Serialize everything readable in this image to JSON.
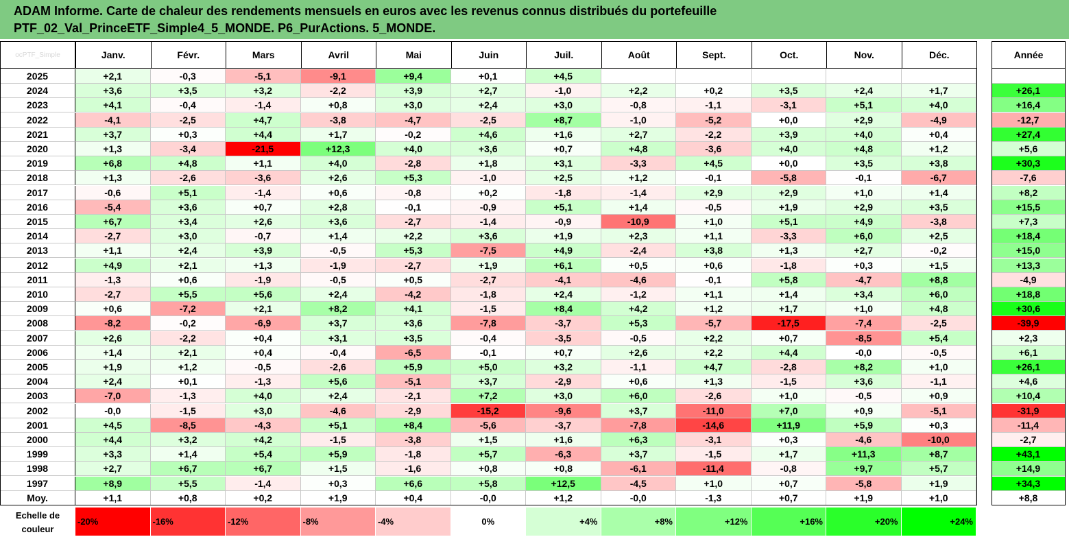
{
  "title": {
    "line1": "ADAM Informe. Carte de chaleur des rendements mensuels en euros avec les revenus connus distribués du portefeuille",
    "line2": "PTF_02_Val_PrinceETF_Simple4_5_MONDE. P6_PurActions. 5_MONDE."
  },
  "corner_label": "ocPTF_Simple",
  "chart_data": {
    "type": "heatmap",
    "columns": [
      "Janv.",
      "Févr.",
      "Mars",
      "Avril",
      "Mai",
      "Juin",
      "Juil.",
      "Août",
      "Sept.",
      "Oct.",
      "Nov.",
      "Déc."
    ],
    "year_column": "Année",
    "rows": [
      {
        "year": "2025",
        "months": [
          "+2,1",
          "-0,3",
          "-5,1",
          "-9,1",
          "+9,4",
          "+0,1",
          "+4,5",
          "",
          "",
          "",
          "",
          ""
        ],
        "annual": ""
      },
      {
        "year": "2024",
        "months": [
          "+3,6",
          "+3,5",
          "+3,2",
          "-2,2",
          "+3,9",
          "+2,7",
          "-1,0",
          "+2,2",
          "+0,2",
          "+3,5",
          "+2,4",
          "+1,7"
        ],
        "annual": "+26,1"
      },
      {
        "year": "2023",
        "months": [
          "+4,1",
          "-0,4",
          "-1,4",
          "+0,8",
          "+3,0",
          "+2,4",
          "+3,0",
          "-0,8",
          "-1,1",
          "-3,1",
          "+5,1",
          "+4,0"
        ],
        "annual": "+16,4"
      },
      {
        "year": "2022",
        "months": [
          "-4,1",
          "-2,5",
          "+4,7",
          "-3,8",
          "-4,7",
          "-2,5",
          "+8,7",
          "-1,0",
          "-5,2",
          "+0,0",
          "+2,9",
          "-4,9"
        ],
        "annual": "-12,7"
      },
      {
        "year": "2021",
        "months": [
          "+3,7",
          "+0,3",
          "+4,4",
          "+1,7",
          "-0,2",
          "+4,6",
          "+1,6",
          "+2,7",
          "-2,2",
          "+3,9",
          "+4,0",
          "+0,4"
        ],
        "annual": "+27,4"
      },
      {
        "year": "2020",
        "months": [
          "+1,3",
          "-3,4",
          "-21,5",
          "+12,3",
          "+4,0",
          "+3,6",
          "+0,7",
          "+4,8",
          "-3,6",
          "+4,0",
          "+4,8",
          "+1,2"
        ],
        "annual": "+5,6"
      },
      {
        "year": "2019",
        "months": [
          "+6,8",
          "+4,8",
          "+1,1",
          "+4,0",
          "-2,8",
          "+1,8",
          "+3,1",
          "-3,3",
          "+4,5",
          "+0,0",
          "+3,5",
          "+3,8"
        ],
        "annual": "+30,3"
      },
      {
        "year": "2018",
        "months": [
          "+1,3",
          "-2,6",
          "-3,6",
          "+2,6",
          "+5,3",
          "-1,0",
          "+2,5",
          "+1,2",
          "-0,1",
          "-5,8",
          "-0,1",
          "-6,7"
        ],
        "annual": "-7,6"
      },
      {
        "year": "2017",
        "months": [
          "-0,6",
          "+5,1",
          "-1,4",
          "+0,6",
          "-0,8",
          "+0,2",
          "-1,8",
          "-1,4",
          "+2,9",
          "+2,9",
          "+1,0",
          "+1,4"
        ],
        "annual": "+8,2"
      },
      {
        "year": "2016",
        "months": [
          "-5,4",
          "+3,6",
          "+0,7",
          "+2,8",
          "-0,1",
          "-0,9",
          "+5,1",
          "+1,4",
          "-0,5",
          "+1,9",
          "+2,9",
          "+3,5"
        ],
        "annual": "+15,5"
      },
      {
        "year": "2015",
        "months": [
          "+6,7",
          "+3,4",
          "+2,6",
          "+3,6",
          "-2,7",
          "-1,4",
          "-0,9",
          "-10,9",
          "+1,0",
          "+5,1",
          "+4,9",
          "-3,8"
        ],
        "annual": "+7,3"
      },
      {
        "year": "2014",
        "months": [
          "-2,7",
          "+3,0",
          "-0,7",
          "+1,4",
          "+2,2",
          "+3,6",
          "+1,9",
          "+2,3",
          "+1,1",
          "-3,3",
          "+6,0",
          "+2,5"
        ],
        "annual": "+18,4"
      },
      {
        "year": "2013",
        "months": [
          "+1,1",
          "+2,4",
          "+3,9",
          "-0,5",
          "+5,3",
          "-7,5",
          "+4,9",
          "-2,4",
          "+3,8",
          "+1,3",
          "+2,7",
          "-0,2"
        ],
        "annual": "+15,0"
      },
      {
        "year": "2012",
        "months": [
          "+4,9",
          "+2,1",
          "+1,3",
          "-1,9",
          "-2,7",
          "+1,9",
          "+6,1",
          "+0,5",
          "+0,6",
          "-1,8",
          "+0,3",
          "+1,5"
        ],
        "annual": "+13,3"
      },
      {
        "year": "2011",
        "months": [
          "-1,3",
          "+0,6",
          "-1,9",
          "-0,5",
          "+0,5",
          "-2,7",
          "-4,1",
          "-4,6",
          "-0,1",
          "+5,8",
          "-4,7",
          "+8,8"
        ],
        "annual": "-4,9"
      },
      {
        "year": "2010",
        "months": [
          "-2,7",
          "+5,5",
          "+5,6",
          "+2,4",
          "-4,2",
          "-1,8",
          "+2,4",
          "-1,2",
          "+1,1",
          "+1,4",
          "+3,4",
          "+6,0"
        ],
        "annual": "+18,8"
      },
      {
        "year": "2009",
        "months": [
          "+0,6",
          "-7,2",
          "+2,1",
          "+8,2",
          "+4,1",
          "-1,5",
          "+8,4",
          "+4,2",
          "+1,2",
          "+1,7",
          "+1,0",
          "+4,8"
        ],
        "annual": "+30,6"
      },
      {
        "year": "2008",
        "months": [
          "-8,2",
          "-0,2",
          "-6,9",
          "+3,7",
          "+3,6",
          "-7,8",
          "-3,7",
          "+5,3",
          "-5,7",
          "-17,5",
          "-7,4",
          "-2,5"
        ],
        "annual": "-39,9"
      },
      {
        "year": "2007",
        "months": [
          "+2,6",
          "-2,2",
          "+0,4",
          "+3,1",
          "+3,5",
          "-0,4",
          "-3,5",
          "-0,5",
          "+2,2",
          "+0,7",
          "-8,5",
          "+5,4"
        ],
        "annual": "+2,3"
      },
      {
        "year": "2006",
        "months": [
          "+1,4",
          "+2,1",
          "+0,4",
          "-0,4",
          "-6,5",
          "-0,1",
          "+0,7",
          "+2,6",
          "+2,2",
          "+4,4",
          "-0,0",
          "-0,5"
        ],
        "annual": "+6,1"
      },
      {
        "year": "2005",
        "months": [
          "+1,9",
          "+1,2",
          "-0,5",
          "-2,6",
          "+5,9",
          "+5,0",
          "+3,2",
          "-1,1",
          "+4,7",
          "-2,8",
          "+8,2",
          "+1,0"
        ],
        "annual": "+26,1"
      },
      {
        "year": "2004",
        "months": [
          "+2,4",
          "+0,1",
          "-1,3",
          "+5,6",
          "-5,1",
          "+3,7",
          "-2,9",
          "+0,6",
          "+1,3",
          "-1,5",
          "+3,6",
          "-1,1"
        ],
        "annual": "+4,6"
      },
      {
        "year": "2003",
        "months": [
          "-7,0",
          "-1,3",
          "+4,0",
          "+2,4",
          "-2,1",
          "+7,2",
          "+3,0",
          "+6,0",
          "-2,6",
          "+1,0",
          "-0,5",
          "+0,9"
        ],
        "annual": "+10,4"
      },
      {
        "year": "2002",
        "months": [
          "-0,0",
          "-1,5",
          "+3,0",
          "-4,6",
          "-2,9",
          "-15,2",
          "-9,6",
          "+3,7",
          "-11,0",
          "+7,0",
          "+0,9",
          "-5,1"
        ],
        "annual": "-31,9"
      },
      {
        "year": "2001",
        "months": [
          "+4,5",
          "-8,5",
          "-4,3",
          "+5,1",
          "+8,4",
          "-5,6",
          "-3,7",
          "-7,8",
          "-14,6",
          "+11,9",
          "+5,9",
          "+0,3"
        ],
        "annual": "-11,4"
      },
      {
        "year": "2000",
        "months": [
          "+4,4",
          "+3,2",
          "+4,2",
          "-1,5",
          "-3,8",
          "+1,5",
          "+1,6",
          "+6,3",
          "-3,1",
          "+0,3",
          "-4,6",
          "-10,0"
        ],
        "annual": "-2,7"
      },
      {
        "year": "1999",
        "months": [
          "+3,3",
          "+1,4",
          "+5,4",
          "+5,9",
          "-1,8",
          "+5,7",
          "-6,3",
          "+3,7",
          "-1,5",
          "+1,7",
          "+11,3",
          "+8,7"
        ],
        "annual": "+43,1"
      },
      {
        "year": "1998",
        "months": [
          "+2,7",
          "+6,7",
          "+6,7",
          "+1,5",
          "-1,6",
          "+0,8",
          "+0,8",
          "-6,1",
          "-11,4",
          "-0,8",
          "+9,7",
          "+5,7"
        ],
        "annual": "+14,9"
      },
      {
        "year": "1997",
        "months": [
          "+8,9",
          "+5,5",
          "-1,4",
          "+0,3",
          "+6,6",
          "+5,8",
          "+12,5",
          "-4,5",
          "+1,0",
          "+0,7",
          "-5,8",
          "+1,9"
        ],
        "annual": "+34,3"
      }
    ],
    "average": {
      "label": "Moy.",
      "months": [
        "+1,1",
        "+0,8",
        "+0,2",
        "+1,9",
        "+0,4",
        "-0,0",
        "+1,2",
        "-0,0",
        "-1,3",
        "+0,7",
        "+1,9",
        "+1,0"
      ],
      "annual": "+8,8"
    },
    "color_scale": {
      "label": "Echelle de couleur",
      "stops": [
        "-20%",
        "-16%",
        "-12%",
        "-8%",
        "-4%",
        "0%",
        "+4%",
        "+8%",
        "+12%",
        "+16%",
        "+20%",
        "+24%"
      ]
    },
    "colors": {
      "negative": "#ff0000",
      "zero": "#ffffff",
      "positive": "#00ff00",
      "header": "#7fca82"
    }
  }
}
